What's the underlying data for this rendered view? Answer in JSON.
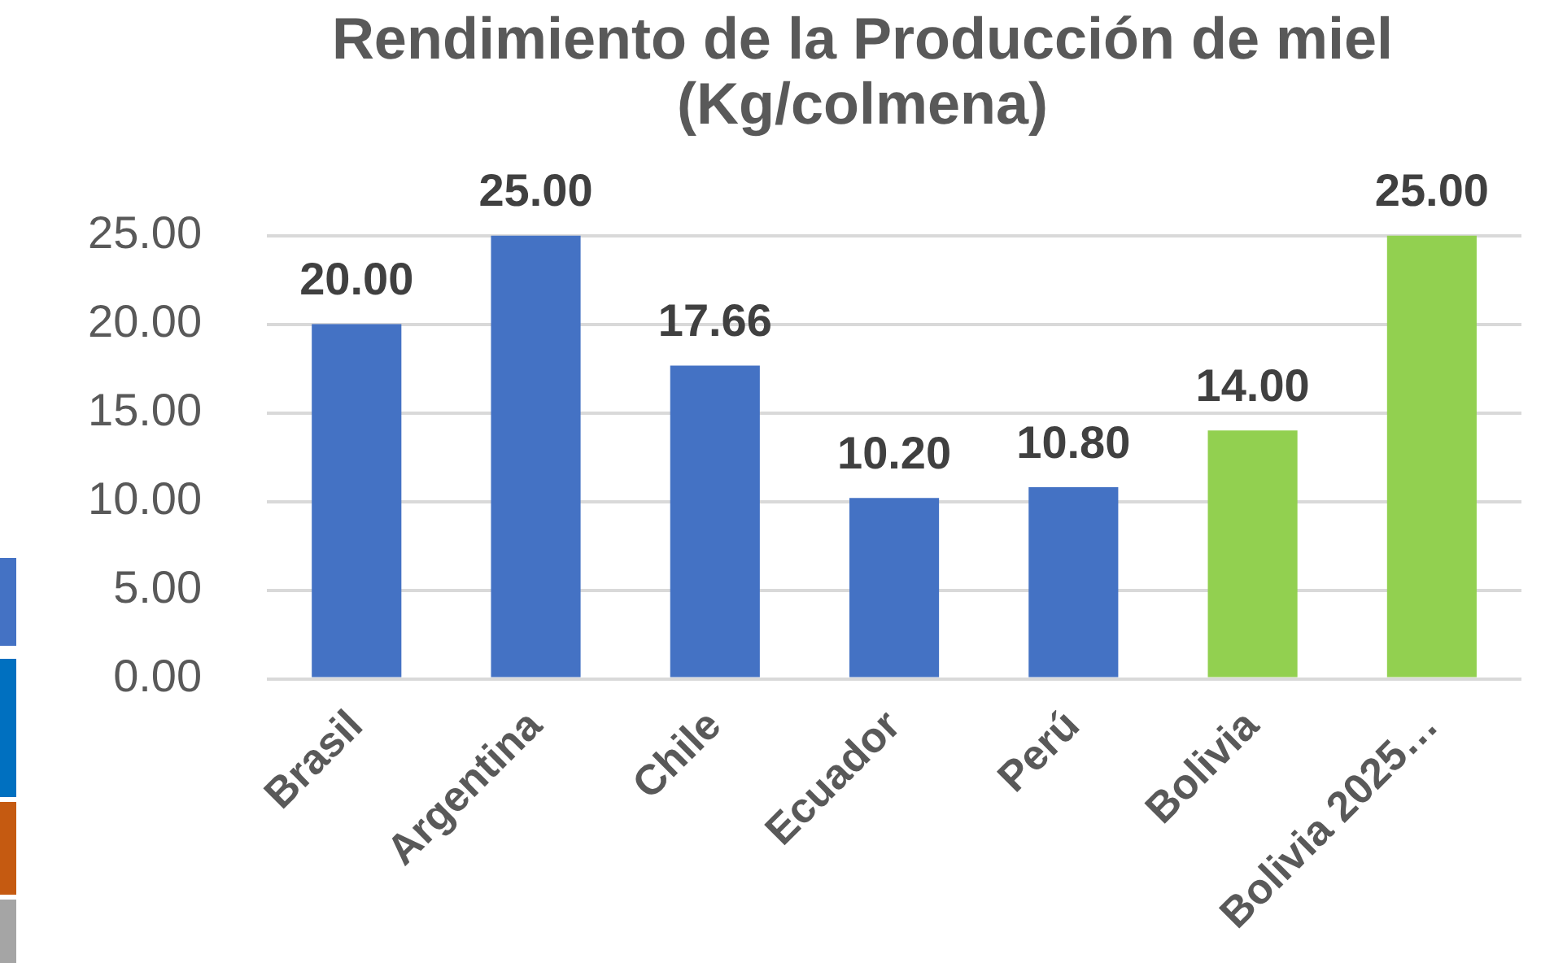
{
  "chart_data": {
    "type": "bar",
    "title": "Rendimiento de la Producción de miel (Kg/colmena)",
    "categories": [
      "Brasil",
      "Argentina",
      "Chile",
      "Ecuador",
      "Perú",
      "Bolivia",
      "Bolivia 2025…"
    ],
    "values": [
      20,
      25,
      17.66,
      10.2,
      10.8,
      14,
      25
    ],
    "colors": [
      "#4472c4",
      "#4472c4",
      "#4472c4",
      "#4472c4",
      "#4472c4",
      "#92d050",
      "#92d050"
    ],
    "value_labels": [
      "20.00",
      "25.00",
      "17.66",
      "10.20",
      "10.80",
      "14.00",
      "25.00"
    ],
    "ylim": [
      0,
      25
    ],
    "yticks": [
      {
        "value": 0,
        "label": "0.00"
      },
      {
        "value": 5,
        "label": "5.00"
      },
      {
        "value": 10,
        "label": "10.00"
      },
      {
        "value": 15,
        "label": "15.00"
      },
      {
        "value": 20,
        "label": "20.00"
      },
      {
        "value": 25,
        "label": "25.00"
      }
    ],
    "grid": "y"
  }
}
